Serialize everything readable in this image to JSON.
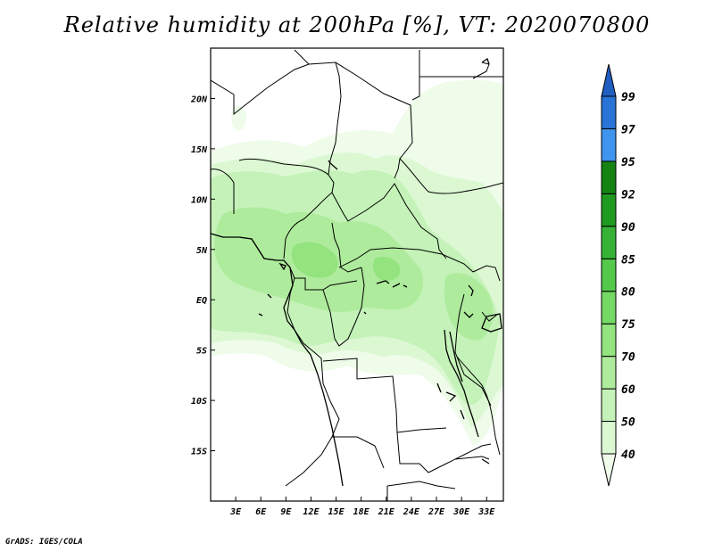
{
  "title": "Relative humidity at 200hPa [%], VT: 2020070800",
  "credit": "GrADS: IGES/COLA",
  "map": {
    "lon_range": [
      0,
      35
    ],
    "lat_range": [
      -20,
      25
    ],
    "x_ticks": [
      "3E",
      "6E",
      "9E",
      "12E",
      "15E",
      "18E",
      "21E",
      "24E",
      "27E",
      "30E",
      "33E"
    ],
    "x_tick_values": [
      3,
      6,
      9,
      12,
      15,
      18,
      21,
      24,
      27,
      30,
      33
    ],
    "y_ticks": [
      "20N",
      "15N",
      "10N",
      "5N",
      "EQ",
      "5S",
      "10S",
      "15S"
    ],
    "y_tick_values": [
      20,
      15,
      10,
      5,
      0,
      -5,
      -10,
      -15
    ]
  },
  "colorbar": {
    "levels": [
      "40",
      "50",
      "60",
      "70",
      "75",
      "80",
      "85",
      "90",
      "92",
      "95",
      "97",
      "99"
    ],
    "colors": [
      "#eefce9",
      "#dcf8d3",
      "#c4f2b8",
      "#aeeb9c",
      "#93e37f",
      "#74d864",
      "#54c94b",
      "#36b336",
      "#1f9a21",
      "#148313",
      "#3f94ee",
      "#2a74d8",
      "#1f5fbf"
    ]
  }
}
